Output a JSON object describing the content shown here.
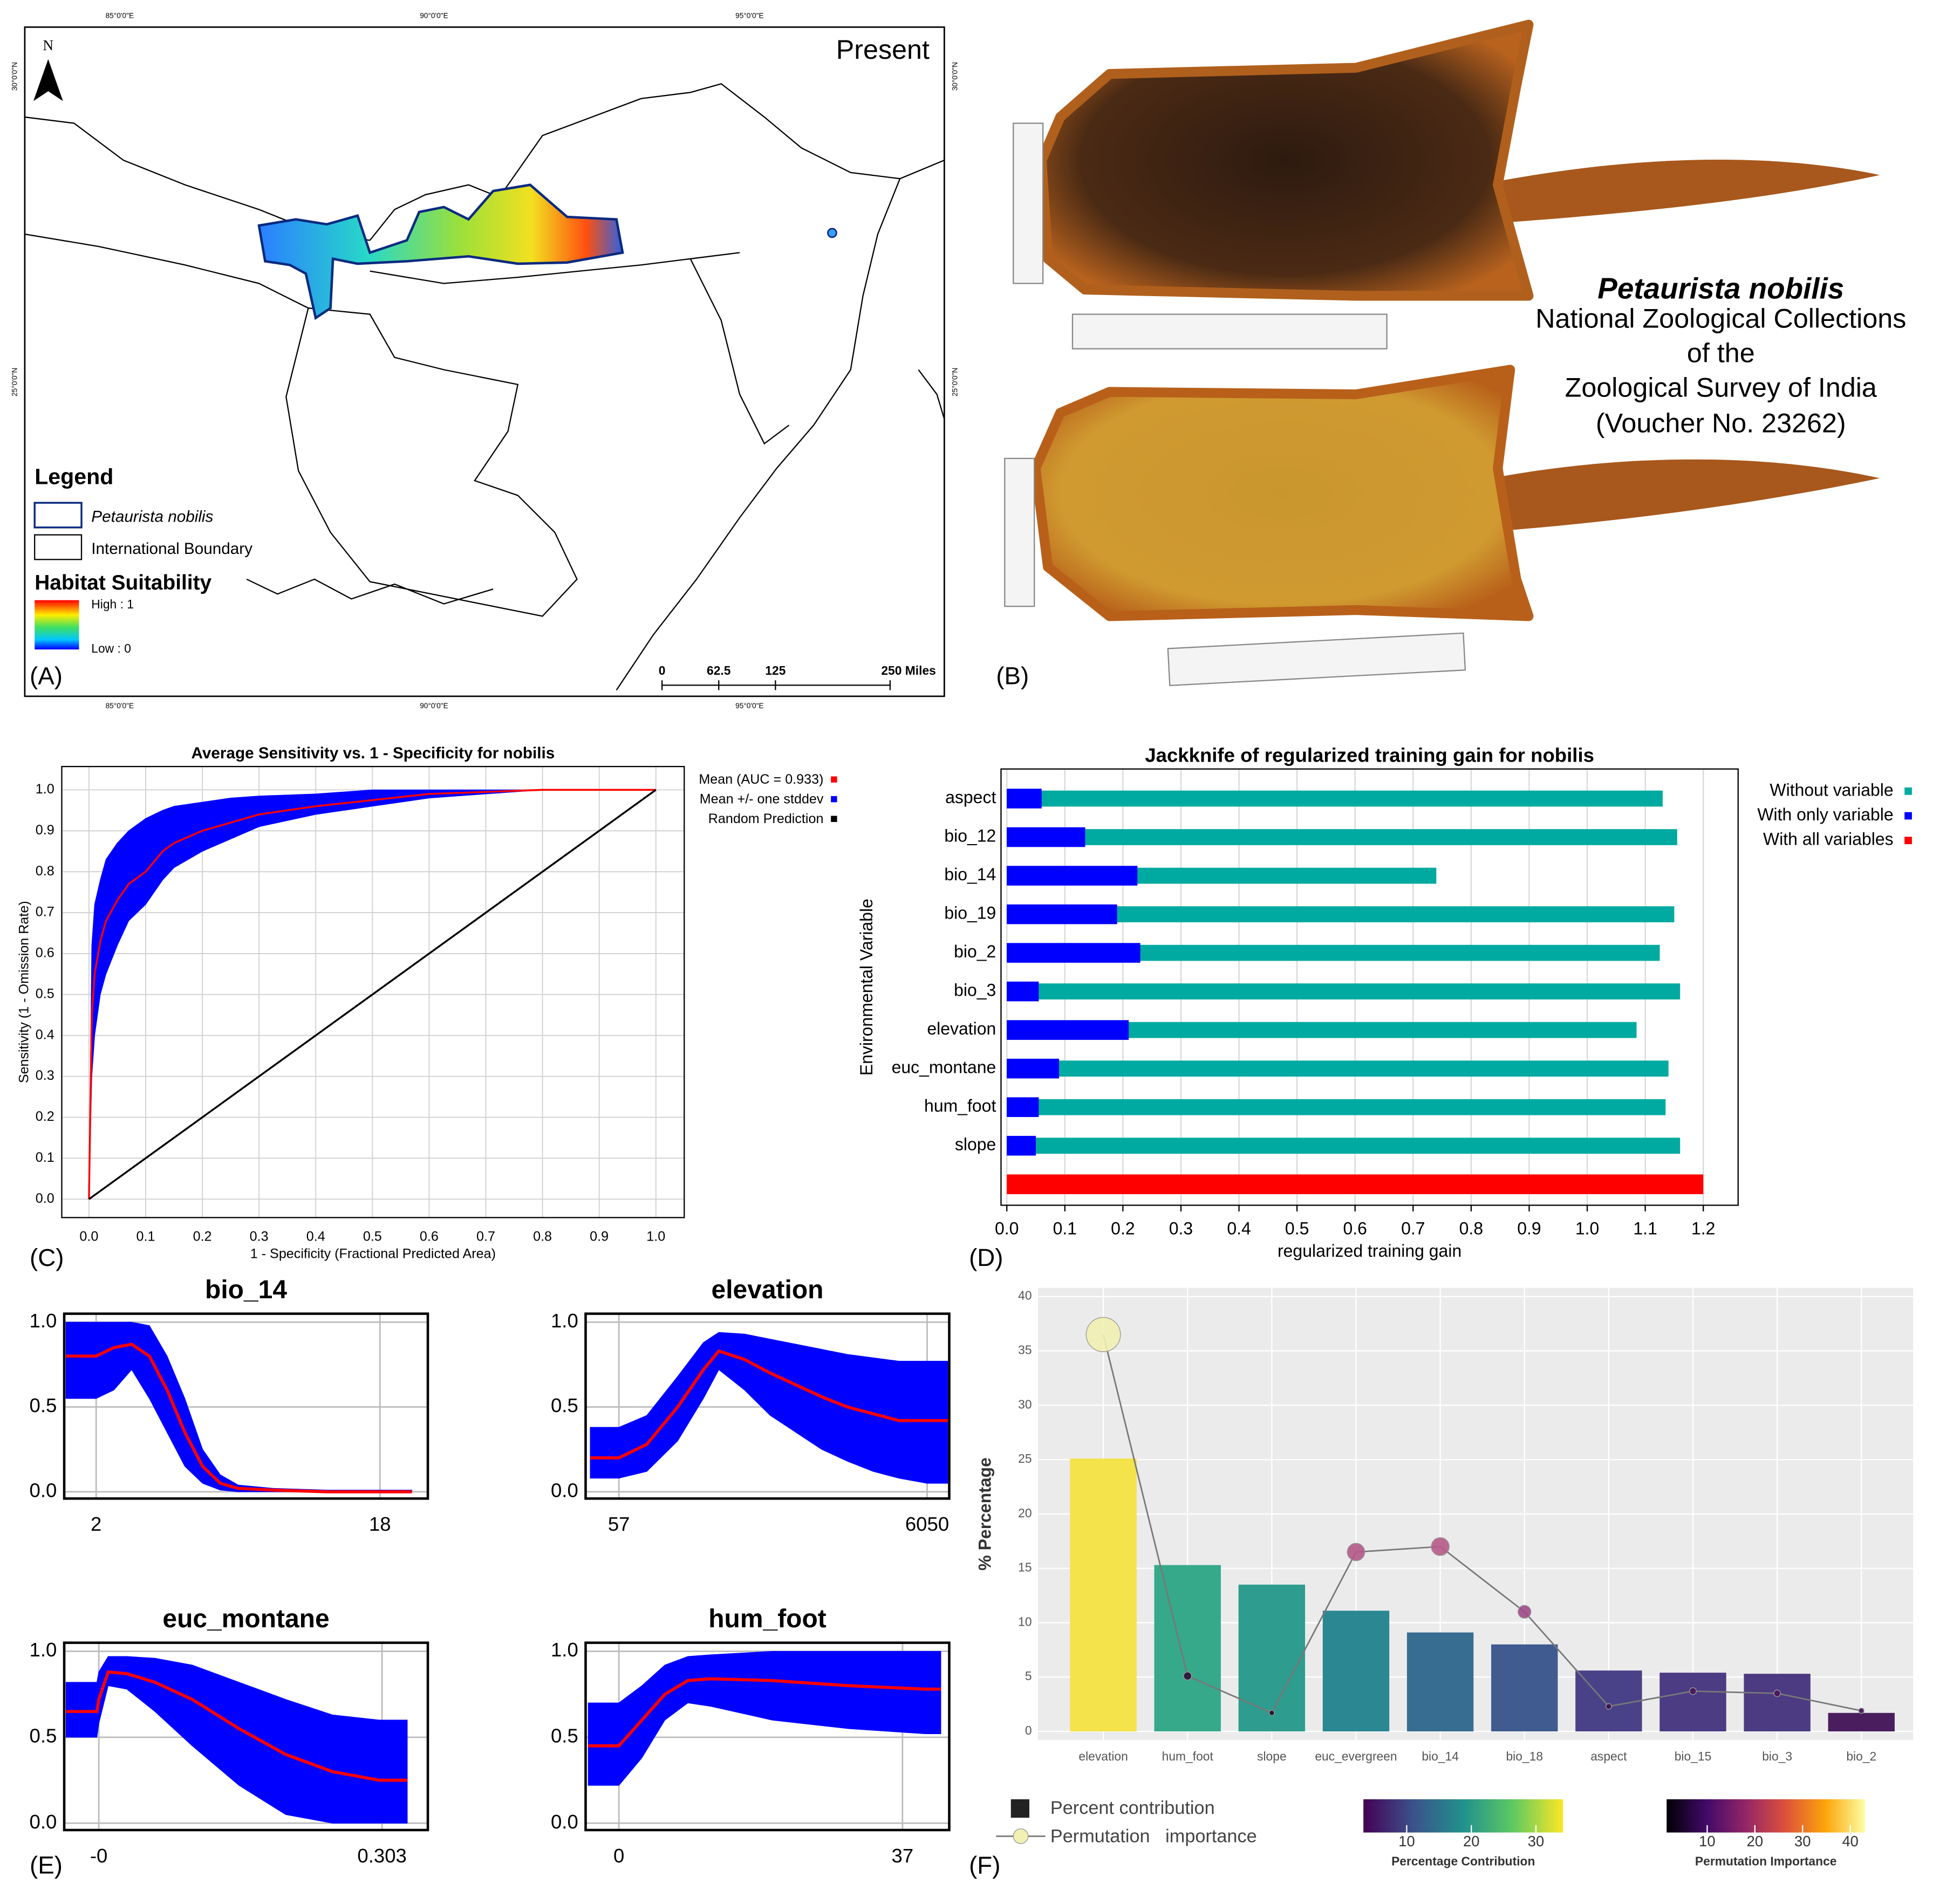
{
  "map": {
    "title": "Present",
    "north": "N",
    "legend": {
      "title": "Legend",
      "items": [
        "Petaurista nobilis",
        "International Boundary"
      ],
      "subtitle": "Habitat Suitability",
      "high": "High : 1",
      "low": "Low : 0"
    },
    "scale": [
      "0",
      "62.5",
      "125",
      "250 Miles"
    ],
    "lon_labels": [
      "85°0'0\"E",
      "90°0'0\"E",
      "95°0'0\"E"
    ],
    "lat_labels": [
      "30°0'0\"N",
      "25°0'0\"N"
    ],
    "label": "(A)"
  },
  "photo": {
    "species": "Petaurista nobilis",
    "caption": [
      "National Zoological Collections",
      "of the",
      "Zoological Survey of India",
      "(Voucher No. 23262)"
    ],
    "label": "(B)"
  },
  "chart_data": [
    {
      "type": "line",
      "title": "Average Sensitivity vs. 1 - Specificity for nobilis",
      "x_label": "1 - Specificity (Fractional Predicted Area)",
      "y_label": "Sensitivity (1 - Omission Rate)",
      "panel_label": "(C)",
      "xlim": [
        -0.048,
        1.05
      ],
      "ylim": [
        -0.045,
        1.057
      ],
      "xticks": [
        {
          "value": 0,
          "label": "0.0"
        },
        0.1,
        0.2,
        0.3,
        0.4,
        0.5,
        0.6,
        0.7,
        0.8,
        0.9,
        {
          "value": 1,
          "label": "1.0"
        }
      ],
      "yticks": [
        {
          "value": 0,
          "label": "0.0"
        },
        0.1,
        0.2,
        0.3,
        0.4,
        0.5,
        0.6,
        0.7,
        0.8,
        0.9,
        {
          "value": 1,
          "label": "1.0"
        }
      ],
      "grid": true,
      "legend": "outside right",
      "series": [
        {
          "name": "Mean (AUC = 0.933)",
          "color": "#ff0000",
          "x": [
            0,
            0.005,
            0.01,
            0.02,
            0.03,
            0.05,
            0.07,
            0.1,
            0.13,
            0.15,
            0.2,
            0.25,
            0.3,
            0.4,
            0.5,
            0.6,
            0.7,
            0.8,
            1
          ],
          "values": [
            0,
            0.45,
            0.55,
            0.63,
            0.68,
            0.73,
            0.77,
            0.8,
            0.85,
            0.87,
            0.9,
            0.92,
            0.94,
            0.96,
            0.975,
            0.99,
            0.995,
            1,
            1
          ]
        },
        {
          "name": "Mean +/- one stddev",
          "color": "#0000ff",
          "x": [
            0,
            0.005,
            0.01,
            0.02,
            0.03,
            0.05,
            0.07,
            0.1,
            0.13,
            0.15,
            0.2,
            0.25,
            0.3,
            0.4,
            0.5,
            0.6,
            0.7,
            0.8,
            1
          ],
          "lower": [
            0,
            0.3,
            0.4,
            0.5,
            0.55,
            0.62,
            0.68,
            0.72,
            0.78,
            0.81,
            0.85,
            0.88,
            0.91,
            0.94,
            0.96,
            0.98,
            0.99,
            1,
            1
          ],
          "upper": [
            0,
            0.62,
            0.72,
            0.78,
            0.83,
            0.87,
            0.9,
            0.93,
            0.95,
            0.96,
            0.97,
            0.98,
            0.985,
            0.99,
            1,
            1,
            1,
            1,
            1
          ]
        },
        {
          "name": "Random Prediction",
          "color": "#000000",
          "x": [
            0,
            1
          ],
          "values": [
            0,
            1
          ]
        }
      ]
    },
    {
      "type": "hbar",
      "title": "Jackknife of regularized training gain for nobilis",
      "x_label": "regularized training gain",
      "y_label": "Environmental Variable",
      "panel_label": "(D)",
      "xlim": [
        -0.01,
        1.26
      ],
      "xticks": [
        {
          "value": 0,
          "label": "0.0"
        },
        0.1,
        0.2,
        0.3,
        0.4,
        0.5,
        0.6,
        0.7,
        0.8,
        0.9,
        {
          "value": 1,
          "label": "1.0"
        },
        1.1,
        1.2
      ],
      "grid": true,
      "legend": "outside right",
      "categories": [
        "aspect",
        "bio_12",
        "bio_14",
        "bio_19",
        "bio_2",
        "bio_3",
        "elevation",
        "euc_montane",
        "hum_foot",
        "slope",
        null
      ],
      "series": [
        {
          "name": "Without variable",
          "color": "#00aaa0",
          "values": [
            1.13,
            1.155,
            0.74,
            1.15,
            1.125,
            1.16,
            1.085,
            1.14,
            1.135,
            1.16,
            null
          ]
        },
        {
          "name": "With only variable",
          "color": "#0000ff",
          "values": [
            0.06,
            0.135,
            0.225,
            0.19,
            0.23,
            0.055,
            0.21,
            0.09,
            0.055,
            0.05,
            null
          ]
        },
        {
          "name": "With all variables",
          "color": "#ff0000",
          "values": [
            null,
            null,
            null,
            null,
            null,
            null,
            null,
            null,
            null,
            null,
            1.2
          ]
        }
      ]
    },
    {
      "type": "line",
      "title": "bio_14",
      "xlim": [
        0.2,
        20.7
      ],
      "ylim": [
        -0.04,
        1.05
      ],
      "xticks": [
        2,
        18
      ],
      "yticks": [
        {
          "value": 0,
          "label": "0.0"
        },
        0.5,
        {
          "value": 1,
          "label": "1.0"
        }
      ],
      "grid": true,
      "series": [
        {
          "color": "#0000ff",
          "x": [
            0.3,
            2,
            3,
            4,
            5,
            6,
            7,
            8,
            9,
            10,
            12,
            15,
            18,
            19.8
          ],
          "lower": [
            0.55,
            0.55,
            0.6,
            0.72,
            0.55,
            0.35,
            0.15,
            0.05,
            0.01,
            0,
            0,
            0,
            0,
            0
          ],
          "upper": [
            1,
            1,
            1,
            1,
            0.98,
            0.8,
            0.55,
            0.25,
            0.1,
            0.04,
            0.02,
            0.01,
            0.01,
            0.01
          ]
        },
        {
          "color": "#ff0000",
          "x": [
            0.3,
            2,
            3,
            4,
            5,
            6,
            7,
            8,
            9,
            10,
            12,
            15,
            18,
            19.8
          ],
          "values": [
            0.8,
            0.8,
            0.85,
            0.87,
            0.8,
            0.6,
            0.35,
            0.15,
            0.05,
            0.02,
            0.01,
            0,
            0,
            0
          ]
        }
      ]
    },
    {
      "type": "line",
      "title": "elevation",
      "xlim": [
        -590,
        6480
      ],
      "ylim": [
        -0.04,
        1.05
      ],
      "xticks": [
        57,
        6050
      ],
      "yticks": [
        {
          "value": 0,
          "label": "0.0"
        },
        0.5,
        {
          "value": 1,
          "label": "1.0"
        }
      ],
      "grid": true,
      "series": [
        {
          "color": "#0000ff",
          "x": [
            -500,
            57,
            600,
            1200,
            1700,
            2000,
            2500,
            3000,
            3500,
            4000,
            4500,
            5000,
            5500,
            6050,
            6450
          ],
          "lower": [
            0.08,
            0.08,
            0.12,
            0.3,
            0.55,
            0.72,
            0.6,
            0.45,
            0.35,
            0.25,
            0.18,
            0.12,
            0.08,
            0.05,
            0.05
          ],
          "upper": [
            0.38,
            0.38,
            0.45,
            0.68,
            0.88,
            0.94,
            0.93,
            0.9,
            0.87,
            0.84,
            0.81,
            0.79,
            0.77,
            0.77,
            0.77
          ]
        },
        {
          "color": "#ff0000",
          "x": [
            -500,
            57,
            600,
            1200,
            1700,
            2000,
            2500,
            3000,
            3500,
            4000,
            4500,
            5000,
            5500,
            6050,
            6450
          ],
          "values": [
            0.2,
            0.2,
            0.28,
            0.5,
            0.72,
            0.83,
            0.78,
            0.7,
            0.63,
            0.56,
            0.5,
            0.46,
            0.42,
            0.42,
            0.42
          ]
        }
      ]
    },
    {
      "type": "line",
      "title": "euc_montane",
      "panel_label": "(E)",
      "xlim": [
        -0.037,
        0.352
      ],
      "ylim": [
        -0.04,
        1.05
      ],
      "xticks": [
        {
          "value": 0,
          "label": "-0"
        },
        0.303
      ],
      "yticks": [
        {
          "value": 0,
          "label": "0.0"
        },
        0.5,
        {
          "value": 1,
          "label": "1.0"
        }
      ],
      "grid": true,
      "series": [
        {
          "color": "#0000ff",
          "x": [
            -0.035,
            -0.002,
            0,
            0.01,
            0.03,
            0.06,
            0.1,
            0.15,
            0.2,
            0.25,
            0.3,
            0.33
          ],
          "lower": [
            0.5,
            0.5,
            0.58,
            0.8,
            0.78,
            0.65,
            0.45,
            0.22,
            0.05,
            0,
            0,
            0
          ],
          "upper": [
            0.82,
            0.82,
            0.88,
            0.97,
            0.97,
            0.96,
            0.92,
            0.82,
            0.72,
            0.63,
            0.6,
            0.6
          ]
        },
        {
          "color": "#ff0000",
          "x": [
            -0.035,
            -0.002,
            0,
            0.01,
            0.03,
            0.06,
            0.1,
            0.15,
            0.2,
            0.25,
            0.3,
            0.33
          ],
          "values": [
            0.65,
            0.65,
            0.72,
            0.88,
            0.87,
            0.82,
            0.72,
            0.55,
            0.4,
            0.3,
            0.25,
            0.25
          ]
        }
      ]
    },
    {
      "type": "line",
      "title": "hum_foot",
      "xlim": [
        -4.34,
        43.1
      ],
      "ylim": [
        -0.04,
        1.05
      ],
      "xticks": [
        0,
        37
      ],
      "yticks": [
        {
          "value": 0,
          "label": "0.0"
        },
        0.5,
        {
          "value": 1,
          "label": "1.0"
        }
      ],
      "grid": true,
      "series": [
        {
          "color": "#0000ff",
          "x": [
            -4,
            0,
            3,
            6,
            9,
            12,
            20,
            30,
            40,
            42
          ],
          "lower": [
            0.22,
            0.22,
            0.38,
            0.6,
            0.7,
            0.68,
            0.6,
            0.55,
            0.52,
            0.52
          ],
          "upper": [
            0.7,
            0.7,
            0.8,
            0.92,
            0.97,
            0.98,
            1,
            1,
            1,
            1
          ]
        },
        {
          "color": "#ff0000",
          "x": [
            -4,
            0,
            3,
            6,
            9,
            12,
            20,
            30,
            40,
            42
          ],
          "values": [
            0.45,
            0.45,
            0.6,
            0.75,
            0.83,
            0.84,
            0.83,
            0.8,
            0.78,
            0.78
          ]
        }
      ]
    },
    {
      "type": "barline",
      "y_label": "% Percentage",
      "panel_label": "(F)",
      "ylim": [
        -0.8,
        40.8
      ],
      "yticks": [
        0,
        5,
        10,
        15,
        20,
        25,
        30,
        35,
        40
      ],
      "grid": true,
      "categories": [
        "elevation",
        "hum_foot",
        "slope",
        "euc_evergreen",
        "bio_14",
        "bio_18",
        "aspect",
        "bio_15",
        "bio_3",
        "bio_2"
      ],
      "series": [
        {
          "name": "Percent contribution",
          "color": "#222222",
          "values": [
            25.1,
            15.3,
            13.5,
            11.1,
            9.1,
            8.0,
            5.6,
            5.4,
            5.3,
            1.7
          ],
          "colors": [
            "#f4e34a",
            "#36a98b",
            "#2e9c8e",
            "#2b8792",
            "#386d92",
            "#3f5b8f",
            "#4a4288",
            "#4b3c84",
            "#4c3b82",
            "#4a1d5f"
          ]
        },
        {
          "name": "Permutation   importance",
          "color": "#777777",
          "values": [
            36.5,
            5.1,
            1.7,
            16.5,
            17.0,
            11.0,
            2.3,
            3.7,
            3.5,
            1.9
          ],
          "colors": [
            "#f2f0b2",
            "#2a0c3a",
            "#1a0a2a",
            "#b4588a",
            "#b85a8a",
            "#9e4a88",
            "#3a0f4f",
            "#4a125a",
            "#4a125a",
            "#3a0f4f"
          ]
        }
      ],
      "colorbars": [
        {
          "title": "Percentage Contribution",
          "lim": [
            3.3,
            34.2
          ],
          "ticks": [
            10,
            20,
            30
          ],
          "colors": [
            "#440154",
            "#3b528b",
            "#21918c",
            "#5ec962",
            "#fde725"
          ]
        },
        {
          "title": "Permutation Importance",
          "lim": [
            1.5,
            43.1
          ],
          "ticks": [
            10,
            20,
            30,
            40
          ],
          "colors": [
            "#000004",
            "#420a68",
            "#932667",
            "#dd513a",
            "#fca50a",
            "#fcffa4"
          ]
        }
      ]
    }
  ]
}
